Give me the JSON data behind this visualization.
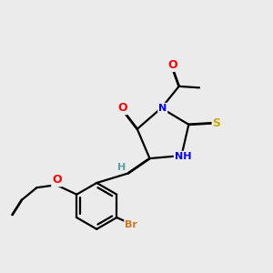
{
  "background_color": "#ebebeb",
  "atom_colors": {
    "C": "#000000",
    "N": "#0000ff",
    "O": "#ff0000",
    "S": "#ccaa00",
    "Br": "#cc7722",
    "H": "#5f9ea0"
  },
  "figsize": [
    3.0,
    3.0
  ],
  "dpi": 100,
  "lw": 1.6,
  "fs": 8
}
